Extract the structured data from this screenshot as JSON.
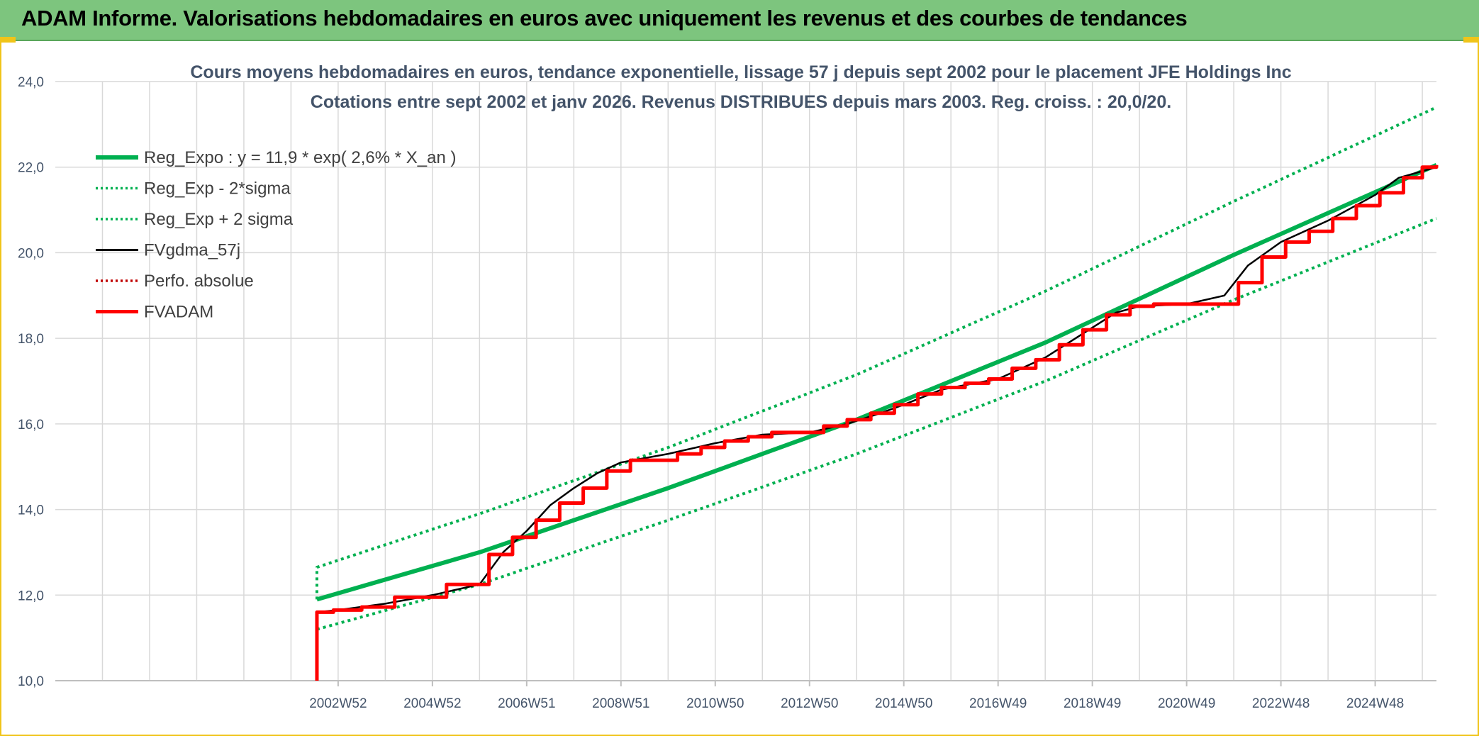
{
  "banner": {
    "title": "ADAM Informe. Valorisations hebdomadaires en euros avec uniquement les revenus et des courbes de tendances"
  },
  "chart_data": {
    "type": "line",
    "title_line1": "Cours moyens hebdomadaires en euros, tendance exponentielle, lissage 57 j depuis sept 2002 pour le placement JFE Holdings Inc",
    "title_line2": "Cotations entre sept 2002 et janv 2026. Revenus DISTRIBUES depuis mars 2003. Reg. croiss. : 20,0/20.",
    "ylim": [
      10,
      24
    ],
    "yticks": [
      "10,0",
      "12,0",
      "14,0",
      "16,0",
      "18,0",
      "20,0",
      "22,0",
      "24,0"
    ],
    "xlim": [
      1997.0,
      2026.3
    ],
    "xticks": [
      {
        "x": 2003.0,
        "label": "2002W52"
      },
      {
        "x": 2005.0,
        "label": "2004W52"
      },
      {
        "x": 2007.0,
        "label": "2006W51"
      },
      {
        "x": 2009.0,
        "label": "2008W51"
      },
      {
        "x": 2011.0,
        "label": "2010W50"
      },
      {
        "x": 2013.0,
        "label": "2012W50"
      },
      {
        "x": 2015.0,
        "label": "2014W50"
      },
      {
        "x": 2017.0,
        "label": "2016W49"
      },
      {
        "x": 2019.0,
        "label": "2018W49"
      },
      {
        "x": 2021.0,
        "label": "2020W49"
      },
      {
        "x": 2023.0,
        "label": "2022W48"
      },
      {
        "x": 2025.0,
        "label": "2024W48"
      }
    ],
    "grid": true,
    "legend_position": "top-left",
    "series": [
      {
        "name": "Reg_Expo : y = 11,9 * exp( 2,6% *  X_an )",
        "color": "#00b050",
        "style": "solid-thick",
        "x": [
          2002.55,
          2006.0,
          2010.0,
          2014.0,
          2018.0,
          2022.0,
          2026.3
        ],
        "y": [
          11.9,
          13.0,
          14.5,
          16.1,
          17.9,
          19.95,
          22.05
        ]
      },
      {
        "name": "Reg_Exp - 2*sigma",
        "color": "#00b050",
        "style": "dotted",
        "x": [
          2002.55,
          2006.0,
          2010.0,
          2014.0,
          2018.0,
          2022.0,
          2026.3
        ],
        "y": [
          11.2,
          12.25,
          13.75,
          15.3,
          17.0,
          18.9,
          20.8
        ]
      },
      {
        "name": "Reg_Exp + 2 sigma",
        "color": "#00b050",
        "style": "dotted",
        "x": [
          2002.55,
          2002.55,
          2006.0,
          2010.0,
          2014.0,
          2018.0,
          2022.0,
          2026.3
        ],
        "y": [
          11.9,
          12.65,
          13.9,
          15.45,
          17.15,
          19.1,
          21.2,
          23.4
        ]
      },
      {
        "name": "FVgdma_57j",
        "color": "#000000",
        "style": "solid",
        "x": [
          2002.55,
          2003.0,
          2004.0,
          2005.0,
          2006.0,
          2006.5,
          2007.0,
          2007.5,
          2008.0,
          2008.5,
          2009.0,
          2010.0,
          2011.0,
          2012.0,
          2013.0,
          2013.8,
          2014.5,
          2015.0,
          2015.8,
          2016.5,
          2017.0,
          2018.0,
          2019.0,
          2019.5,
          2020.0,
          2021.0,
          2021.8,
          2022.3,
          2023.0,
          2023.5,
          2024.0,
          2024.5,
          2025.0,
          2025.5,
          2026.3
        ],
        "y": [
          11.6,
          11.65,
          11.8,
          12.0,
          12.25,
          13.0,
          13.5,
          14.1,
          14.5,
          14.85,
          15.1,
          15.3,
          15.55,
          15.75,
          15.8,
          16.0,
          16.25,
          16.45,
          16.8,
          16.95,
          17.05,
          17.55,
          18.25,
          18.6,
          18.75,
          18.8,
          19.0,
          19.7,
          20.25,
          20.5,
          20.75,
          21.05,
          21.35,
          21.75,
          22.0
        ]
      },
      {
        "name": "Perfo. absolue",
        "color": "#c00000",
        "style": "dotted",
        "x": [],
        "y": []
      },
      {
        "name": "FVADAM",
        "color": "#ff0000",
        "style": "step-thick",
        "x": [
          2002.55,
          2002.55,
          2002.9,
          2003.5,
          2004.2,
          2005.3,
          2006.2,
          2006.7,
          2007.2,
          2007.7,
          2008.2,
          2008.7,
          2009.2,
          2010.2,
          2010.7,
          2011.2,
          2011.7,
          2012.2,
          2013.3,
          2013.8,
          2014.3,
          2014.8,
          2015.3,
          2015.8,
          2016.3,
          2016.8,
          2017.3,
          2017.8,
          2018.3,
          2018.8,
          2019.3,
          2019.8,
          2020.3,
          2022.1,
          2022.6,
          2023.1,
          2023.6,
          2024.1,
          2024.6,
          2025.1,
          2025.6,
          2026.0,
          2026.3
        ],
        "y": [
          10.0,
          11.6,
          11.65,
          11.72,
          11.95,
          12.25,
          12.95,
          13.35,
          13.75,
          14.15,
          14.5,
          14.9,
          15.15,
          15.3,
          15.45,
          15.6,
          15.7,
          15.8,
          15.95,
          16.1,
          16.25,
          16.45,
          16.7,
          16.85,
          16.95,
          17.05,
          17.3,
          17.5,
          17.85,
          18.2,
          18.55,
          18.75,
          18.8,
          19.3,
          19.9,
          20.25,
          20.5,
          20.8,
          21.1,
          21.4,
          21.75,
          22.0,
          22.05
        ]
      }
    ]
  }
}
